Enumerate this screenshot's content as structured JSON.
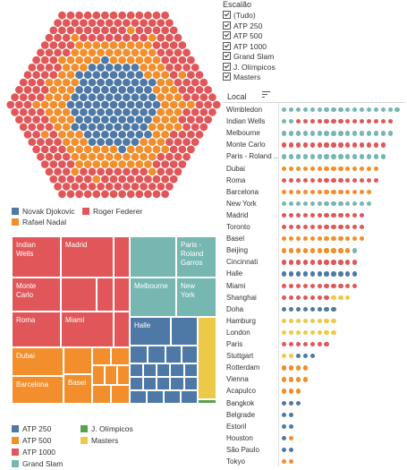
{
  "colors": {
    "djokovic": "#4e79a7",
    "nadal": "#f28e2b",
    "federer": "#e15759",
    "atp250": "#4e79a7",
    "atp500": "#f28e2b",
    "atp1000": "#e15759",
    "grand_slam": "#76b7b2",
    "olimpicos": "#59a14f",
    "masters": "#edc948"
  },
  "player_legend": [
    {
      "name": "Novak Djokovic",
      "color": "#4e79a7"
    },
    {
      "name": "Roger Federer",
      "color": "#e15759"
    },
    {
      "name": "Rafael Nadal",
      "color": "#f28e2b"
    }
  ],
  "filter": {
    "title": "Escalão",
    "options": [
      {
        "label": "(Tudo)",
        "checked": true
      },
      {
        "label": "ATP 250",
        "checked": true
      },
      {
        "label": "ATP 500",
        "checked": true
      },
      {
        "label": "ATP 1000",
        "checked": true
      },
      {
        "label": "Grand Slam",
        "checked": true
      },
      {
        "label": "J. Olímpicos",
        "checked": true
      },
      {
        "label": "Masters",
        "checked": true
      }
    ]
  },
  "local": {
    "title": "Local",
    "sort_icon": "sort-descending-icon",
    "rows": [
      {
        "name": "Wimbledon",
        "dots": [
          "gs",
          "gs",
          "gs",
          "gs",
          "gs",
          "gs",
          "gs",
          "gs",
          "gs",
          "gs",
          "gs",
          "gs",
          "gs",
          "gs",
          "gs",
          "gs",
          "gs"
        ]
      },
      {
        "name": "Indian Wells",
        "dots": [
          "gs",
          "gs",
          "m1",
          "m1",
          "m1",
          "m1",
          "m1",
          "m1",
          "m1",
          "m1",
          "m1",
          "m1",
          "m1",
          "m1",
          "m1",
          "m1"
        ]
      },
      {
        "name": "Melbourne",
        "dots": [
          "gs",
          "gs",
          "gs",
          "gs",
          "gs",
          "gs",
          "gs",
          "gs",
          "gs",
          "gs",
          "gs",
          "gs",
          "gs",
          "gs",
          "gs",
          "gs"
        ]
      },
      {
        "name": "Monte Carlo",
        "dots": [
          "m1",
          "m1",
          "m1",
          "m1",
          "m1",
          "m1",
          "m1",
          "m1",
          "m1",
          "m1",
          "m1",
          "m1",
          "m1",
          "m1",
          "m1"
        ]
      },
      {
        "name": "Paris - Roland ...",
        "dots": [
          "gs",
          "gs",
          "gs",
          "gs",
          "gs",
          "gs",
          "gs",
          "gs",
          "gs",
          "gs",
          "gs",
          "gs",
          "gs",
          "gs",
          "gs"
        ]
      },
      {
        "name": "Dubai",
        "dots": [
          "a5",
          "a5",
          "a5",
          "a5",
          "a5",
          "a5",
          "a5",
          "a5",
          "a5",
          "a5",
          "a5",
          "a5",
          "a5",
          "a5"
        ]
      },
      {
        "name": "Roma",
        "dots": [
          "m1",
          "m1",
          "m1",
          "m1",
          "m1",
          "m1",
          "m1",
          "m1",
          "m1",
          "m1",
          "m1",
          "m1",
          "m1",
          "m1"
        ]
      },
      {
        "name": "Barcelona",
        "dots": [
          "a5",
          "a5",
          "a5",
          "a5",
          "a5",
          "a5",
          "a5",
          "a5",
          "a5",
          "a5",
          "a5",
          "a5",
          "a5"
        ]
      },
      {
        "name": "New York",
        "dots": [
          "gs",
          "gs",
          "gs",
          "gs",
          "gs",
          "gs",
          "gs",
          "gs",
          "gs",
          "gs",
          "gs",
          "gs",
          "gs"
        ]
      },
      {
        "name": "Madrid",
        "dots": [
          "m1",
          "m1",
          "m1",
          "m1",
          "m1",
          "m1",
          "m1",
          "m1",
          "m1",
          "m1",
          "m1",
          "m1"
        ]
      },
      {
        "name": "Toronto",
        "dots": [
          "m1",
          "m1",
          "m1",
          "m1",
          "m1",
          "m1",
          "m1",
          "m1",
          "m1",
          "m1",
          "m1",
          "m1"
        ]
      },
      {
        "name": "Basel",
        "dots": [
          "a5",
          "a5",
          "a5",
          "a5",
          "a5",
          "a5",
          "a5",
          "a5",
          "a5",
          "a5",
          "a5",
          "a5"
        ]
      },
      {
        "name": "Beijing",
        "dots": [
          "a5",
          "a5",
          "a5",
          "a5",
          "a5",
          "a5",
          "a5",
          "a5",
          "a5",
          "a5",
          "gs"
        ]
      },
      {
        "name": "Cincinnati",
        "dots": [
          "m1",
          "m1",
          "m1",
          "m1",
          "m1",
          "m1",
          "m1",
          "m1",
          "m1",
          "m1",
          "m1"
        ]
      },
      {
        "name": "Halle",
        "dots": [
          "a2",
          "a2",
          "a2",
          "a2",
          "a2",
          "a2",
          "a2",
          "a2",
          "a2",
          "a2",
          "a2"
        ]
      },
      {
        "name": "Miami",
        "dots": [
          "m1",
          "m1",
          "m1",
          "m1",
          "m1",
          "m1",
          "m1",
          "m1",
          "m1",
          "m1",
          "m1"
        ]
      },
      {
        "name": "Shanghai",
        "dots": [
          "m1",
          "m1",
          "m1",
          "m1",
          "m1",
          "m1",
          "m1",
          "ms",
          "ms",
          "ms"
        ]
      },
      {
        "name": "Doha",
        "dots": [
          "a2",
          "a2",
          "a2",
          "a2",
          "a2",
          "a2",
          "a2",
          "a2"
        ]
      },
      {
        "name": "Hamburg",
        "dots": [
          "ms",
          "ms",
          "ms",
          "ms",
          "ms",
          "ms",
          "ms",
          "ms"
        ]
      },
      {
        "name": "London",
        "dots": [
          "ms",
          "ms",
          "ms",
          "ms",
          "ms",
          "ms",
          "ms",
          "ms"
        ]
      },
      {
        "name": "Paris",
        "dots": [
          "m1",
          "m1",
          "m1",
          "m1",
          "m1",
          "m1",
          "m1"
        ]
      },
      {
        "name": "Stuttgart",
        "dots": [
          "ms",
          "ms",
          "a2",
          "a2",
          "a2"
        ]
      },
      {
        "name": "Rotterdam",
        "dots": [
          "a5",
          "a5",
          "a5",
          "a5"
        ]
      },
      {
        "name": "Vienna",
        "dots": [
          "a5",
          "a5",
          "a5",
          "a5"
        ]
      },
      {
        "name": "Acapulco",
        "dots": [
          "a5",
          "a5",
          "a5"
        ]
      },
      {
        "name": "Bangkok",
        "dots": [
          "a2",
          "a2",
          "a2"
        ]
      },
      {
        "name": "Belgrade",
        "dots": [
          "a2",
          "a2"
        ]
      },
      {
        "name": "Estoril",
        "dots": [
          "a2",
          "a2"
        ]
      },
      {
        "name": "Houston",
        "dots": [
          "a2",
          "a5"
        ]
      },
      {
        "name": "São Paulo",
        "dots": [
          "a2",
          "a2"
        ]
      },
      {
        "name": "Tokyo",
        "dots": [
          "a5",
          "a5"
        ]
      }
    ]
  },
  "treemap": {
    "labels": {
      "indian_wells": "Indian\nWells",
      "madrid": "Madrid",
      "monte_carlo": "Monte\nCarlo",
      "roma": "Roma",
      "miami": "Miami",
      "melbourne": "Melbourne",
      "paris_rg": "Paris -\nRoland\nGarros",
      "new_york": "New\nYork",
      "halle": "Halle",
      "dubai": "Dubai",
      "barcelona": "Barcelona",
      "basel": "Basel"
    }
  },
  "category_legend": [
    {
      "key": "atp250",
      "label": "ATP 250",
      "color": "#4e79a7"
    },
    {
      "key": "olimpicos",
      "label": "J. Olímpicos",
      "color": "#59a14f"
    },
    {
      "key": "atp500",
      "label": "ATP 500",
      "color": "#f28e2b"
    },
    {
      "key": "masters",
      "label": "Masters",
      "color": "#edc948"
    },
    {
      "key": "atp1000",
      "label": "ATP 1000",
      "color": "#e15759"
    },
    {
      "key": "grand_slam",
      "label": "Grand Slam",
      "color": "#76b7b2"
    }
  ]
}
